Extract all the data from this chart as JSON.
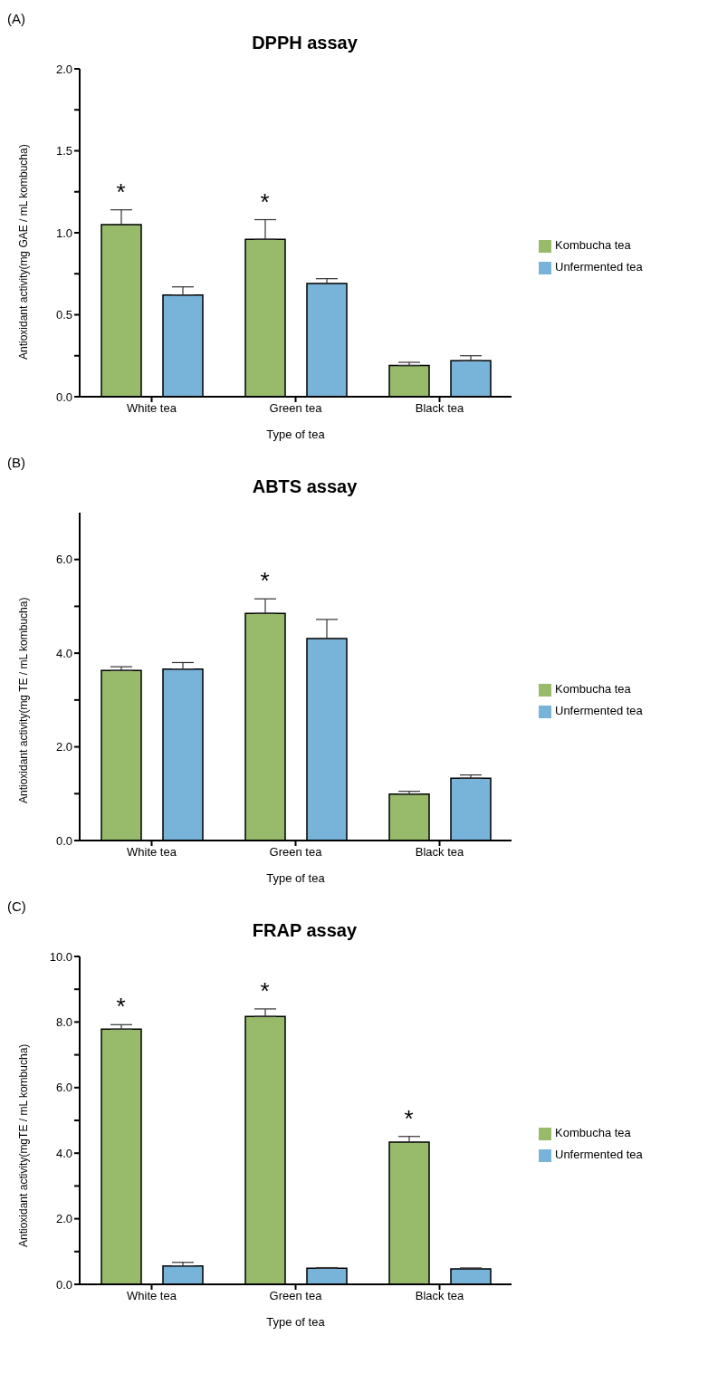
{
  "chart_data": [
    {
      "type": "bar",
      "title": "DPPH assay",
      "xlabel": "Type of tea",
      "ylabel": "Antioxidant activity(mg GAE / mL kombucha)",
      "annotations": [
        "(A)",
        "*",
        "*"
      ],
      "categories": [
        "White tea",
        "Green tea",
        "Black tea"
      ],
      "series": [
        {
          "name": "Kombucha tea",
          "color": "#97bb6a",
          "values": [
            1.05,
            0.96,
            0.19
          ],
          "errors": [
            [
              1.05,
              1.14
            ],
            [
              0.96,
              1.08
            ],
            [
              0.19,
              0.21
            ]
          ]
        },
        {
          "name": "Unfermented tea",
          "color": "#78b3d9",
          "values": [
            0.62,
            0.69,
            0.22
          ],
          "errors": [
            [
              0.62,
              0.67
            ],
            [
              0.69,
              0.72
            ],
            [
              0.22,
              0.25
            ]
          ]
        }
      ],
      "ylim": [
        0,
        2
      ],
      "yticks": [
        {
          "value": 0,
          "label": "0.0"
        },
        {
          "value": 0.25,
          "label": null
        },
        {
          "value": 0.5,
          "label": "0.5"
        },
        {
          "value": 0.75,
          "label": null
        },
        {
          "value": 1,
          "label": "1.0"
        },
        {
          "value": 1.25,
          "label": null
        },
        {
          "value": 1.5,
          "label": "1.5"
        },
        {
          "value": 1.75,
          "label": null
        },
        {
          "value": 2,
          "label": "2.0"
        }
      ],
      "legend": "right"
    },
    {
      "type": "bar",
      "title": "ABTS assay",
      "xlabel": "Type of tea",
      "ylabel": "Antioxidant activity(mg TE / mL kombucha)",
      "annotations": [
        "(B)",
        "*"
      ],
      "categories": [
        "White tea",
        "Green tea",
        "Black tea"
      ],
      "series": [
        {
          "name": "Kombucha tea",
          "color": "#97bb6a",
          "values": [
            3.63,
            4.85,
            0.99
          ],
          "errors": [
            [
              3.63,
              3.71
            ],
            [
              4.85,
              5.16
            ],
            [
              0.99,
              1.05
            ]
          ]
        },
        {
          "name": "Unfermented tea",
          "color": "#78b3d9",
          "values": [
            3.66,
            4.31,
            1.33
          ],
          "errors": [
            [
              3.66,
              3.8
            ],
            [
              4.31,
              4.72
            ],
            [
              1.33,
              1.4
            ]
          ]
        }
      ],
      "ylim": [
        0,
        7
      ],
      "yticks": [
        {
          "value": 0,
          "label": "0.0"
        },
        {
          "value": 1,
          "label": null
        },
        {
          "value": 2,
          "label": "2.0"
        },
        {
          "value": 3,
          "label": null
        },
        {
          "value": 4,
          "label": "4.0"
        },
        {
          "value": 5,
          "label": null
        },
        {
          "value": 6,
          "label": "6.0"
        }
      ],
      "legend": "right"
    },
    {
      "type": "bar",
      "title": "FRAP assay",
      "xlabel": "Type of tea",
      "ylabel": "Antioxidant activity(mgTE / mL kombucha)",
      "annotations": [
        "(C)",
        "*",
        "*",
        "*"
      ],
      "categories": [
        "White tea",
        "Green tea",
        "Black tea"
      ],
      "series": [
        {
          "name": "Kombucha tea",
          "color": "#97bb6a",
          "values": [
            7.78,
            8.17,
            4.34
          ],
          "errors": [
            [
              7.78,
              7.92
            ],
            [
              8.17,
              8.4
            ],
            [
              4.34,
              4.51
            ]
          ]
        },
        {
          "name": "Unfermented tea",
          "color": "#78b3d9",
          "values": [
            0.56,
            0.49,
            0.47
          ],
          "errors": [
            [
              0.56,
              0.67
            ],
            [
              0.49,
              0.51
            ],
            [
              0.47,
              0.5
            ]
          ]
        }
      ],
      "ylim": [
        0,
        10
      ],
      "yticks": [
        {
          "value": 0,
          "label": "0.0"
        },
        {
          "value": 1,
          "label": null
        },
        {
          "value": 2,
          "label": "2.0"
        },
        {
          "value": 3,
          "label": null
        },
        {
          "value": 4,
          "label": "4.0"
        },
        {
          "value": 5,
          "label": null
        },
        {
          "value": 6,
          "label": "6.0"
        },
        {
          "value": 7,
          "label": null
        },
        {
          "value": 8,
          "label": "8.0"
        },
        {
          "value": 9,
          "label": null
        },
        {
          "value": 10,
          "label": "10.0"
        }
      ],
      "legend": "right"
    }
  ]
}
